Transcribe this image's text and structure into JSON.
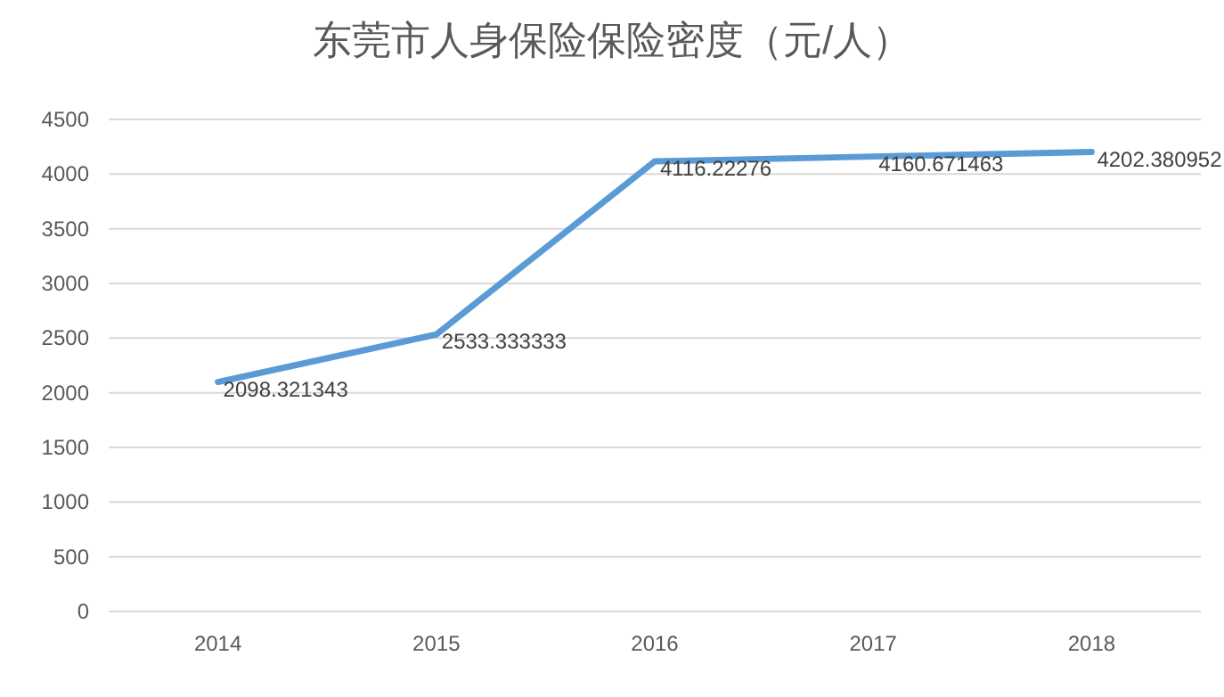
{
  "chart_data": {
    "type": "line",
    "title": "东莞市人身保险保险密度（元/人）",
    "categories": [
      "2014",
      "2015",
      "2016",
      "2017",
      "2018"
    ],
    "series": [
      {
        "color": "#5b9bd5",
        "values": [
          2098.321343,
          2533.333333,
          4116.22276,
          4160.671463,
          4202.380952
        ]
      }
    ],
    "ylim": [
      0,
      4500
    ],
    "yticks": [
      0,
      500,
      1000,
      1500,
      2000,
      2500,
      3000,
      3500,
      4000,
      4500
    ],
    "grid": "y",
    "data_labels": true
  }
}
